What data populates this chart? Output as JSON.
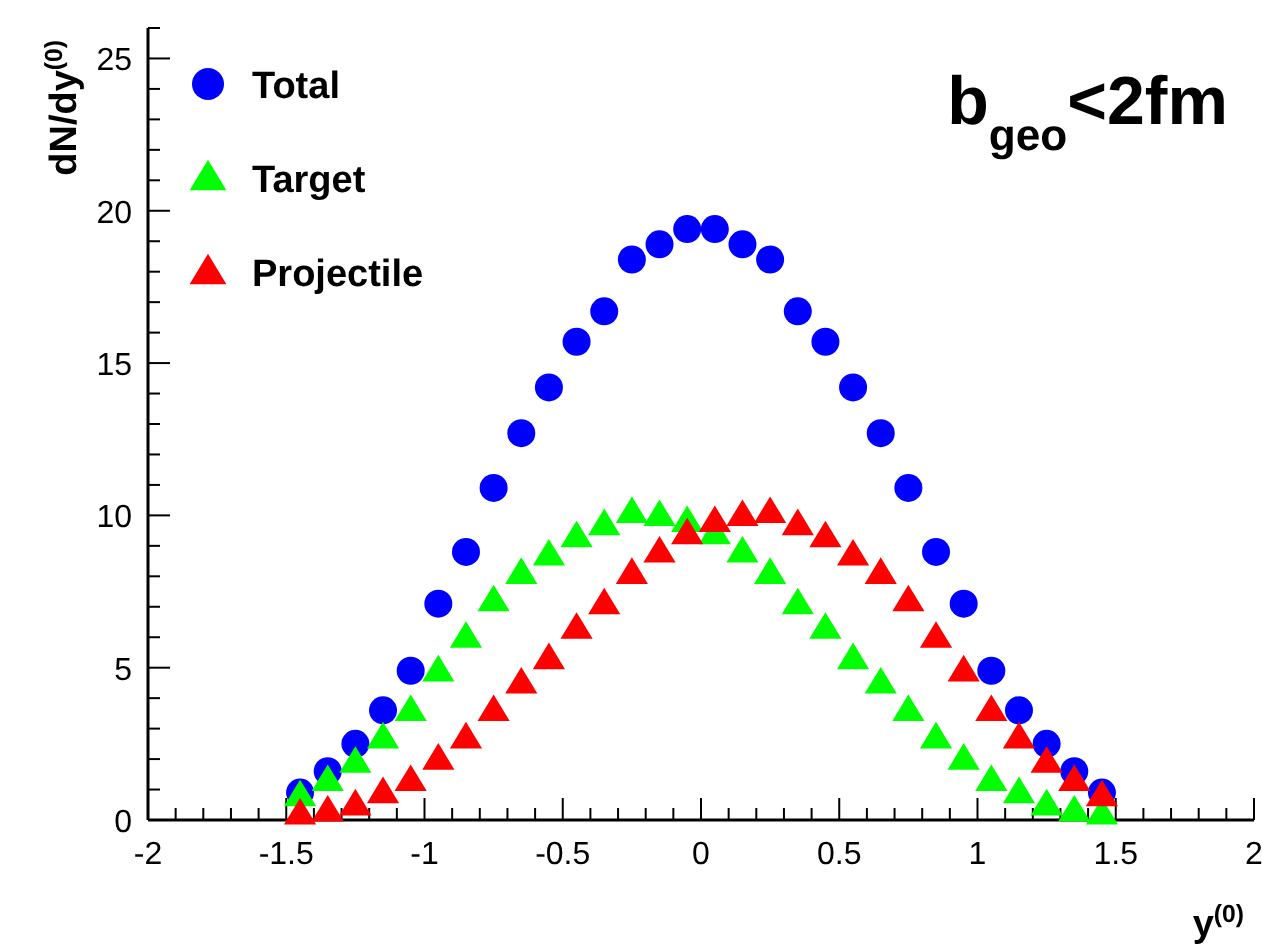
{
  "chart_data": {
    "type": "scatter",
    "title": "b$_{geo}$<2fm",
    "xlabel": "y$^{(0)}$",
    "ylabel": "dN/dy$^{(0)}$",
    "x": [
      -1.45,
      -1.35,
      -1.25,
      -1.15,
      -1.05,
      -0.95,
      -0.85,
      -0.75,
      -0.65,
      -0.55,
      -0.45,
      -0.35,
      -0.25,
      -0.15,
      -0.05,
      0.05,
      0.15,
      0.25,
      0.35,
      0.45,
      0.55,
      0.65,
      0.75,
      0.85,
      0.95,
      1.05,
      1.15,
      1.25,
      1.35,
      1.45
    ],
    "series": [
      {
        "name": "Total",
        "color": "#0000ff",
        "marker": "circle",
        "values": [
          0.9,
          1.6,
          2.5,
          3.6,
          4.9,
          7.1,
          8.8,
          10.9,
          12.7,
          14.2,
          15.7,
          16.7,
          18.4,
          18.9,
          19.4,
          19.4,
          18.9,
          18.4,
          16.7,
          15.7,
          14.2,
          12.7,
          10.9,
          8.8,
          7.1,
          4.9,
          3.6,
          2.5,
          1.6,
          0.9
        ]
      },
      {
        "name": "Target",
        "color": "#00ff00",
        "marker": "triangle",
        "values": [
          0.8,
          1.3,
          1.9,
          2.7,
          3.6,
          4.9,
          6.0,
          7.2,
          8.1,
          8.7,
          9.3,
          9.7,
          10.1,
          10.0,
          9.8,
          9.4,
          8.8,
          8.1,
          7.1,
          6.3,
          5.3,
          4.5,
          3.6,
          2.7,
          2.0,
          1.3,
          0.9,
          0.5,
          0.3,
          0.2
        ]
      },
      {
        "name": "Projectile",
        "color": "#ff0000",
        "marker": "triangle",
        "values": [
          0.2,
          0.3,
          0.5,
          0.9,
          1.3,
          2.0,
          2.7,
          3.6,
          4.5,
          5.3,
          6.3,
          7.1,
          8.1,
          8.8,
          9.4,
          9.8,
          10.0,
          10.1,
          9.7,
          9.3,
          8.7,
          8.1,
          7.2,
          6.0,
          4.9,
          3.6,
          2.7,
          1.9,
          1.3,
          0.8
        ]
      }
    ],
    "xlim": [
      -2,
      2
    ],
    "ylim": [
      0,
      26
    ],
    "xticks": [
      -2,
      {
        "value": -1.9,
        "label": null
      },
      {
        "value": -1.8,
        "label": null
      },
      {
        "value": -1.7,
        "label": null
      },
      {
        "value": -1.6,
        "label": null
      },
      -1.5,
      {
        "value": -1.4,
        "label": null
      },
      {
        "value": -1.3,
        "label": null
      },
      {
        "value": -1.2,
        "label": null
      },
      {
        "value": -1.1,
        "label": null
      },
      -1,
      {
        "value": -0.9,
        "label": null
      },
      {
        "value": -0.8,
        "label": null
      },
      {
        "value": -0.7,
        "label": null
      },
      {
        "value": -0.6,
        "label": null
      },
      -0.5,
      {
        "value": -0.4,
        "label": null
      },
      {
        "value": -0.3,
        "label": null
      },
      {
        "value": -0.2,
        "label": null
      },
      {
        "value": -0.1,
        "label": null
      },
      0,
      {
        "value": 0.1,
        "label": null
      },
      {
        "value": 0.2,
        "label": null
      },
      {
        "value": 0.3,
        "label": null
      },
      {
        "value": 0.4,
        "label": null
      },
      0.5,
      {
        "value": 0.6,
        "label": null
      },
      {
        "value": 0.7,
        "label": null
      },
      {
        "value": 0.8,
        "label": null
      },
      {
        "value": 0.9,
        "label": null
      },
      1,
      {
        "value": 1.1,
        "label": null
      },
      {
        "value": 1.2,
        "label": null
      },
      {
        "value": 1.3,
        "label": null
      },
      {
        "value": 1.4,
        "label": null
      },
      1.5,
      {
        "value": 1.6,
        "label": null
      },
      {
        "value": 1.7,
        "label": null
      },
      {
        "value": 1.8,
        "label": null
      },
      {
        "value": 1.9,
        "label": null
      },
      2
    ],
    "yticks": [
      0,
      {
        "value": 1,
        "label": null
      },
      {
        "value": 2,
        "label": null
      },
      {
        "value": 3,
        "label": null
      },
      {
        "value": 4,
        "label": null
      },
      5,
      {
        "value": 6,
        "label": null
      },
      {
        "value": 7,
        "label": null
      },
      {
        "value": 8,
        "label": null
      },
      {
        "value": 9,
        "label": null
      },
      10,
      {
        "value": 11,
        "label": null
      },
      {
        "value": 12,
        "label": null
      },
      {
        "value": 13,
        "label": null
      },
      {
        "value": 14,
        "label": null
      },
      15,
      {
        "value": 16,
        "label": null
      },
      {
        "value": 17,
        "label": null
      },
      {
        "value": 18,
        "label": null
      },
      {
        "value": 19,
        "label": null
      },
      20,
      {
        "value": 21,
        "label": null
      },
      {
        "value": 22,
        "label": null
      },
      {
        "value": 23,
        "label": null
      },
      {
        "value": 24,
        "label": null
      },
      25,
      {
        "value": 26,
        "label": null
      }
    ],
    "legend": "top left",
    "grid": false
  }
}
